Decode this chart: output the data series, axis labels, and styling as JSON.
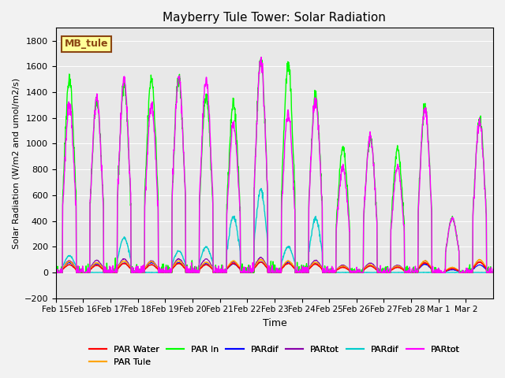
{
  "title": "Mayberry Tule Tower: Solar Radiation",
  "ylabel": "Solar Radiation (W/m2 and umol/m2/s)",
  "xlabel": "Time",
  "ylim": [
    -200,
    1900
  ],
  "yticks": [
    -200,
    0,
    200,
    400,
    600,
    800,
    1000,
    1200,
    1400,
    1600,
    1800
  ],
  "xtick_labels": [
    "Feb 15",
    "Feb 16",
    "Feb 17",
    "Feb 18",
    "Feb 19",
    "Feb 20",
    "Feb 21",
    "Feb 22",
    "Feb 23",
    "Feb 24",
    "Feb 25",
    "Feb 26",
    "Feb 27",
    "Feb 28",
    "Mar 1",
    "Mar 2"
  ],
  "bg_color": "#e8e8e8",
  "fig_color": "#f2f2f2",
  "series_colors": {
    "PAR Water": "#ff0000",
    "PAR Tule": "#ffa500",
    "PAR In": "#00ff00",
    "PARdif_blue": "#0000ff",
    "PARtot_purple": "#8800aa",
    "PARdif_cyan": "#00cccc",
    "PARtot_mag": "#ff00ff"
  },
  "legend_label": "MB_tule",
  "n_days": 16,
  "pts_per_day": 96,
  "day_peaks": [
    1300,
    1350,
    1500,
    1300,
    1510,
    1500,
    1150,
    1650,
    1240,
    1350,
    820,
    1050,
    820,
    1280,
    420,
    1170
  ],
  "par_in_peaks": [
    1510,
    1340,
    1460,
    1510,
    1510,
    1380,
    1310,
    1660,
    1610,
    1370,
    960,
    1050,
    960,
    1290,
    420,
    1180
  ],
  "par_tule_peaks": [
    85,
    75,
    90,
    85,
    90,
    80,
    90,
    100,
    90,
    80,
    50,
    60,
    50,
    90,
    40,
    100
  ],
  "par_water_peaks": [
    60,
    55,
    70,
    60,
    70,
    60,
    70,
    80,
    70,
    65,
    40,
    50,
    40,
    75,
    30,
    80
  ],
  "cyan_peaks": [
    130,
    0,
    270,
    0,
    170,
    200,
    430,
    640,
    200,
    420,
    0,
    0,
    0,
    0,
    0,
    0
  ]
}
